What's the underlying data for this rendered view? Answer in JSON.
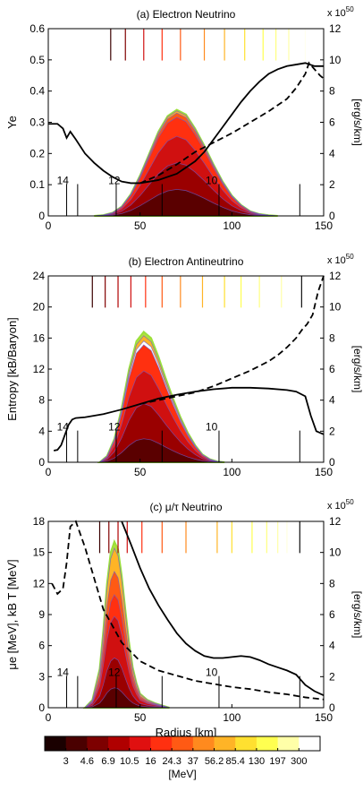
{
  "figure": {
    "xlabel": "Radius [km]",
    "colorbar": {
      "unit": "[MeV]",
      "ticks": [
        "3",
        "4.6",
        "6.9",
        "10.5",
        "16",
        "24.3",
        "37",
        "56.2",
        "85.4",
        "130",
        "197",
        "300"
      ],
      "colors": [
        "#1a0000",
        "#4a0000",
        "#7d0000",
        "#b00000",
        "#e01010",
        "#ff3010",
        "#ff5a14",
        "#ff8a1e",
        "#ffb426",
        "#ffe030",
        "#ffff50",
        "#ffffa8",
        "#ffffff"
      ]
    }
  },
  "chart_data": [
    {
      "type": "area",
      "title": "(a) Electron Neutrino",
      "xlabel": "",
      "ylabel": "Ye",
      "ylabel_right": "[erg/s/km]",
      "right_exponent": "x 10",
      "right_exponent_power": "50",
      "xlim": [
        0,
        150
      ],
      "ylim": [
        0,
        0.6
      ],
      "y2lim": [
        0,
        12
      ],
      "xticks": [
        "0",
        "50",
        "100",
        "150"
      ],
      "yticks": [
        "0",
        "0.1",
        "0.2",
        "0.3",
        "0.4",
        "0.5",
        "0.6"
      ],
      "y2ticks": [
        "0",
        "2",
        "4",
        "6",
        "8",
        "10",
        "12"
      ],
      "mass_labels": [
        {
          "text": "14",
          "x": 5
        },
        {
          "text": "12",
          "x": 33
        },
        {
          "text": "10",
          "x": 86
        }
      ],
      "mass_marks": [
        10,
        16,
        37,
        62,
        93,
        137
      ],
      "top_marks": {
        "x": [
          34,
          42,
          52,
          62,
          72,
          85,
          96,
          107,
          117,
          124,
          131,
          140
        ],
        "colors": [
          "#3a0000",
          "#800000",
          "#d01010",
          "#ff3010",
          "#ff5a14",
          "#ff8a1e",
          "#ffb426",
          "#ffe030",
          "#ffff50",
          "#ffff80",
          "#ffffa8",
          "#fffff0"
        ]
      },
      "lum_x": [
        25,
        30,
        35,
        40,
        45,
        50,
        55,
        60,
        65,
        70,
        75,
        80,
        85,
        90,
        95,
        100,
        105,
        110,
        115,
        120,
        125
      ],
      "luminosity_total": [
        0,
        0.05,
        0.2,
        0.6,
        1.4,
        2.6,
        4.0,
        5.4,
        6.4,
        6.8,
        6.5,
        5.6,
        4.5,
        3.3,
        2.2,
        1.3,
        0.7,
        0.3,
        0.12,
        0.04,
        0
      ],
      "luminosity_bands": [
        {
          "fill": "#5a0000",
          "frac": 0.25
        },
        {
          "fill": "#9a0000",
          "frac": 0.5
        },
        {
          "fill": "#d01010",
          "frac": 0.75
        },
        {
          "fill": "#ff3010",
          "frac": 0.93
        },
        {
          "fill": "#ff5a14",
          "frac": 0.97
        },
        {
          "fill": "#ffb426",
          "frac": 0.99
        },
        {
          "fill": "#b2e03c",
          "frac": 1.0
        }
      ],
      "series": [
        {
          "style": "solid",
          "axis": "left",
          "x": [
            0,
            5,
            8,
            10,
            12,
            15,
            20,
            25,
            30,
            35,
            40,
            45,
            50,
            55,
            60,
            65,
            70,
            75,
            80,
            85,
            90,
            95,
            100,
            105,
            110,
            115,
            120,
            125,
            130,
            135,
            140,
            145,
            150
          ],
          "y": [
            0.295,
            0.295,
            0.28,
            0.25,
            0.27,
            0.245,
            0.2,
            0.17,
            0.145,
            0.125,
            0.11,
            0.105,
            0.105,
            0.11,
            0.115,
            0.125,
            0.135,
            0.155,
            0.175,
            0.205,
            0.245,
            0.285,
            0.325,
            0.365,
            0.4,
            0.43,
            0.455,
            0.47,
            0.48,
            0.485,
            0.49,
            0.48,
            0.48
          ]
        },
        {
          "style": "dashed",
          "axis": "left",
          "x": [
            50,
            60,
            70,
            80,
            90,
            100,
            110,
            120,
            125,
            130,
            135,
            140,
            142,
            145,
            148,
            150
          ],
          "y": [
            0.105,
            0.13,
            0.165,
            0.205,
            0.235,
            0.265,
            0.3,
            0.335,
            0.355,
            0.375,
            0.41,
            0.455,
            0.49,
            0.47,
            0.45,
            0.44
          ]
        }
      ]
    },
    {
      "type": "area",
      "title": "(b) Electron Antineutrino",
      "xlabel": "",
      "ylabel": "Entropy [kB/Baryon]",
      "ylabel_right": "[erg/s/km]",
      "right_exponent": "x 10",
      "right_exponent_power": "50",
      "xlim": [
        0,
        150
      ],
      "ylim": [
        0,
        24
      ],
      "y2lim": [
        0,
        12
      ],
      "xticks": [
        "0",
        "50",
        "100",
        "150"
      ],
      "yticks": [
        "0",
        "4",
        "8",
        "12",
        "16",
        "20",
        "24"
      ],
      "y2ticks": [
        "0",
        "2",
        "4",
        "6",
        "8",
        "10",
        "12"
      ],
      "mass_labels": [
        {
          "text": "14",
          "x": 5
        },
        {
          "text": "12",
          "x": 33
        },
        {
          "text": "10",
          "x": 86
        }
      ],
      "mass_marks": [
        10,
        16,
        37,
        62,
        93,
        137
      ],
      "top_marks": {
        "x": [
          24,
          31,
          38,
          45,
          53,
          62,
          72,
          84,
          96,
          105,
          115,
          127,
          138
        ],
        "colors": [
          "#3a0000",
          "#800000",
          "#b00000",
          "#d01010",
          "#ff3010",
          "#ff5a14",
          "#ff8a1e",
          "#ffb426",
          "#ffe030",
          "#ffff50",
          "#ffff80",
          "#ffffa8",
          "#101010"
        ]
      },
      "lum_x": [
        28,
        32,
        36,
        40,
        44,
        48,
        52,
        56,
        60,
        64,
        68,
        72,
        76,
        80,
        84,
        88,
        92,
        96
      ],
      "luminosity_total": [
        0,
        0.4,
        1.5,
        3.5,
        6.0,
        7.8,
        8.4,
        8.0,
        6.8,
        5.4,
        4.1,
        2.9,
        1.9,
        1.1,
        0.5,
        0.2,
        0.05,
        0
      ],
      "luminosity_bands": [
        {
          "fill": "#5a0000",
          "frac": 0.18
        },
        {
          "fill": "#9a0000",
          "frac": 0.45
        },
        {
          "fill": "#d01010",
          "frac": 0.7
        },
        {
          "fill": "#ff3010",
          "frac": 0.9
        },
        {
          "fill": "#ffffff",
          "frac": 0.93
        },
        {
          "fill": "#ffb426",
          "frac": 0.97
        },
        {
          "fill": "#b2e03c",
          "frac": 1.0
        }
      ],
      "series": [
        {
          "style": "solid",
          "axis": "left",
          "x": [
            3,
            5,
            7,
            9,
            11,
            13,
            15,
            20,
            30,
            40,
            50,
            60,
            70,
            80,
            90,
            100,
            110,
            120,
            130,
            135,
            140,
            143,
            146,
            150
          ],
          "y": [
            1.5,
            1.6,
            2.2,
            3.5,
            4.8,
            5.5,
            5.7,
            5.8,
            6.2,
            6.8,
            7.5,
            8.2,
            8.7,
            9.1,
            9.4,
            9.6,
            9.6,
            9.5,
            9.3,
            9.1,
            8.5,
            6.0,
            4.0,
            3.6
          ]
        },
        {
          "style": "dashed",
          "axis": "left",
          "x": [
            50,
            60,
            70,
            80,
            90,
            100,
            110,
            120,
            125,
            130,
            135,
            138,
            141,
            144,
            147,
            150
          ],
          "y": [
            7.5,
            8.0,
            8.5,
            9.0,
            9.8,
            10.8,
            11.8,
            13.0,
            13.8,
            14.8,
            16.0,
            17.0,
            17.8,
            19.0,
            22.0,
            24.0
          ]
        }
      ]
    },
    {
      "type": "area",
      "title": "(c) μ/τ Neutrino",
      "xlabel": "Radius [km]",
      "ylabel": "μe [MeV], kB T [MeV]",
      "ylabel_right": "[erg/s/km]",
      "right_exponent": "x 10",
      "right_exponent_power": "50",
      "xlim": [
        0,
        150
      ],
      "ylim": [
        0,
        18
      ],
      "y2lim": [
        0,
        12
      ],
      "xticks": [
        "0",
        "50",
        "100",
        "150"
      ],
      "yticks": [
        "0",
        "3",
        "6",
        "9",
        "12",
        "15",
        "18"
      ],
      "y2ticks": [
        "0",
        "2",
        "4",
        "6",
        "8",
        "10",
        "12"
      ],
      "mass_labels": [
        {
          "text": "14",
          "x": 5
        },
        {
          "text": "12",
          "x": 33
        },
        {
          "text": "10",
          "x": 86
        }
      ],
      "mass_marks": [
        10,
        16,
        37,
        62,
        93,
        137
      ],
      "top_marks": {
        "x": [
          28,
          33,
          38,
          43,
          51,
          62,
          75,
          92,
          100,
          111,
          119,
          125,
          130,
          137
        ],
        "colors": [
          "#3a0000",
          "#800000",
          "#b00000",
          "#d01010",
          "#ff3010",
          "#ff5a14",
          "#ff8a1e",
          "#ffb426",
          "#ffe030",
          "#ffff50",
          "#ffff80",
          "#ffffa8",
          "#ffffe0",
          "#101010"
        ]
      },
      "lum_x": [
        20,
        24,
        28,
        30,
        32,
        34,
        36,
        38,
        40,
        42,
        44,
        46,
        48,
        50,
        54,
        58,
        62,
        66
      ],
      "luminosity_total": [
        0,
        0.5,
        2.5,
        5.0,
        8.0,
        10.0,
        10.7,
        10.2,
        8.5,
        6.3,
        4.2,
        2.6,
        1.6,
        0.9,
        0.5,
        0.3,
        0.15,
        0
      ],
      "luminosity_bands": [
        {
          "fill": "#5a0000",
          "frac": 0.12
        },
        {
          "fill": "#9a0000",
          "frac": 0.3
        },
        {
          "fill": "#d01010",
          "frac": 0.55
        },
        {
          "fill": "#ff3010",
          "frac": 0.68
        },
        {
          "fill": "#ff5a14",
          "frac": 0.82
        },
        {
          "fill": "#ffb426",
          "frac": 0.96
        },
        {
          "fill": "#b2e03c",
          "frac": 1.0
        }
      ],
      "series": [
        {
          "style": "solid",
          "axis": "left",
          "x": [
            40,
            45,
            50,
            55,
            60,
            65,
            70,
            75,
            80,
            85,
            90,
            95,
            100,
            105,
            110,
            115,
            120,
            125,
            130,
            135,
            140,
            145,
            150
          ],
          "y": [
            18.2,
            15.8,
            13.5,
            11.5,
            9.9,
            8.5,
            7.2,
            6.2,
            5.5,
            5.0,
            4.8,
            4.8,
            4.9,
            5.0,
            4.9,
            4.6,
            4.2,
            3.9,
            3.6,
            3.2,
            2.2,
            1.6,
            1.2
          ]
        },
        {
          "style": "dashed",
          "axis": "left",
          "x": [
            2,
            5,
            8,
            10,
            12,
            15,
            20,
            25,
            30,
            40,
            50,
            60,
            70,
            80,
            90,
            100,
            110,
            120,
            130,
            140,
            150
          ],
          "y": [
            12.0,
            11.0,
            11.5,
            14.0,
            17.5,
            18.2,
            15.5,
            12.5,
            9.5,
            6.3,
            4.5,
            3.6,
            3.1,
            2.6,
            2.3,
            2.0,
            1.8,
            1.5,
            1.3,
            1.0,
            0.8
          ]
        }
      ]
    }
  ]
}
